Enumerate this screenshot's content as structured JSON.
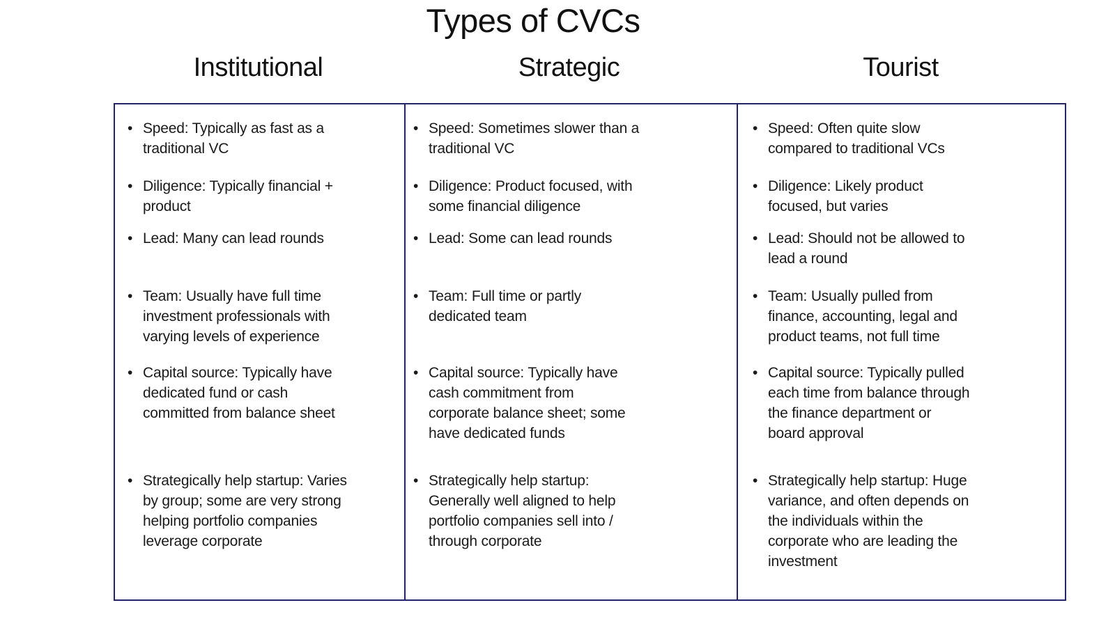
{
  "title": "Types of CVCs",
  "bullet_char": "•",
  "colors": {
    "border": "#24246a",
    "text": "#1a1a1a",
    "background": "#ffffff"
  },
  "table": {
    "columns": [
      {
        "header": "Institutional",
        "bullets": [
          "Speed: Typically as fast as a\ntraditional VC",
          "Diligence: Typically financial +\nproduct",
          "Lead: Many can lead rounds",
          "Team: Usually have full time\ninvestment professionals with\nvarying levels of experience",
          "Capital source: Typically have\ndedicated fund or cash\ncommitted from balance sheet",
          "Strategically help startup: Varies\nby group; some are very strong\nhelping portfolio companies\nleverage corporate"
        ]
      },
      {
        "header": "Strategic",
        "bullets": [
          "Speed: Sometimes slower than a\ntraditional VC",
          "Diligence: Product focused, with\nsome financial diligence",
          "Lead: Some can lead rounds",
          "Team: Full time or partly\ndedicated team",
          "Capital source: Typically have\ncash commitment from\ncorporate balance sheet; some\nhave dedicated funds",
          "Strategically help startup:\nGenerally well aligned to help\nportfolio companies sell into /\nthrough corporate"
        ]
      },
      {
        "header": "Tourist",
        "bullets": [
          "Speed: Often quite slow\ncompared to traditional VCs",
          "Diligence: Likely product\nfocused, but varies",
          "Lead: Should not be allowed to\nlead a round",
          "Team: Usually pulled from\nfinance, accounting, legal and\nproduct teams, not full time",
          "Capital source: Typically pulled\neach time from balance through\nthe finance department or\nboard approval",
          "Strategically help startup: Huge\nvariance, and often depends on\nthe individuals within the\ncorporate who are leading the\ninvestment"
        ]
      }
    ]
  }
}
